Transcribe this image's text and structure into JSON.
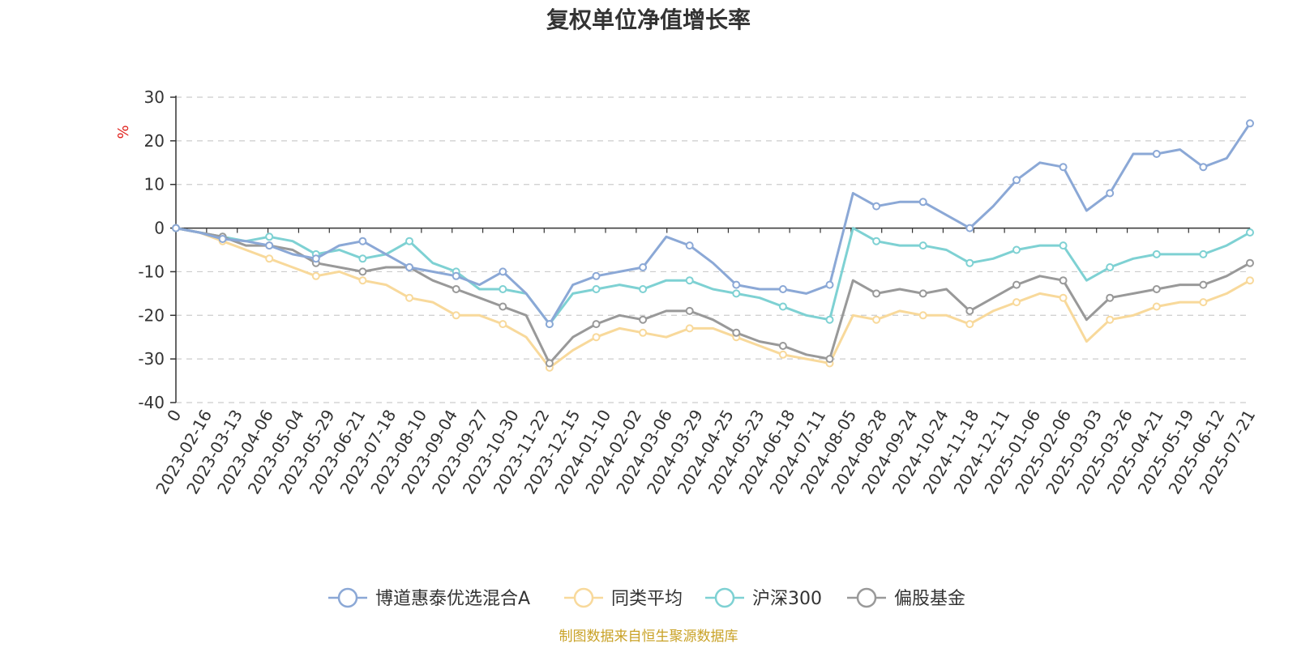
{
  "chart_data": {
    "type": "line",
    "title": "复权单位净值增长率",
    "ylabel": "%",
    "ylim": [
      -40,
      30
    ],
    "yticks": [
      30,
      20,
      10,
      0,
      -10,
      -20,
      -30,
      -40
    ],
    "grid": true,
    "legend_position": "bottom",
    "x_start_label": "0",
    "x_tick_labels": [
      "2023-02-16",
      "2023-03-13",
      "2023-04-06",
      "2023-05-04",
      "2023-05-29",
      "2023-06-21",
      "2023-07-18",
      "2023-08-10",
      "2023-09-04",
      "2023-09-27",
      "2023-10-30",
      "2023-11-22",
      "2023-12-15",
      "2024-01-10",
      "2024-02-02",
      "2024-03-06",
      "2024-03-29",
      "2024-04-25",
      "2024-05-23",
      "2024-06-18",
      "2024-07-11",
      "2024-08-05",
      "2024-08-28",
      "2024-09-24",
      "2024-10-24",
      "2024-11-18",
      "2024-12-11",
      "2025-01-06",
      "2025-02-06",
      "2025-03-03",
      "2025-03-26",
      "2025-04-21",
      "2025-05-19",
      "2025-06-12",
      "2025-07-21"
    ],
    "series": [
      {
        "name": "博道惠泰优选混合A",
        "color": "#8ba8d6",
        "values": [
          0,
          -1,
          -2.5,
          -3,
          -4,
          -6,
          -7,
          -4,
          -3,
          -6,
          -9,
          -10,
          -11,
          -13,
          -10,
          -15,
          -22,
          -13,
          -11,
          -10,
          -9,
          -2,
          -4,
          -8,
          -13,
          -14,
          -14,
          -15,
          -13,
          8,
          5,
          6,
          6,
          3,
          0,
          5,
          11,
          15,
          14,
          4,
          8,
          17,
          17,
          18,
          14,
          16,
          24
        ]
      },
      {
        "name": "同类平均",
        "color": "#f8d99b",
        "values": [
          0,
          -1,
          -3,
          -5,
          -7,
          -9,
          -11,
          -10,
          -12,
          -13,
          -16,
          -17,
          -20,
          -20,
          -22,
          -25,
          -32,
          -28,
          -25,
          -23,
          -24,
          -25,
          -23,
          -23,
          -25,
          -27,
          -29,
          -30,
          -31,
          -20,
          -21,
          -19,
          -20,
          -20,
          -22,
          -19,
          -17,
          -15,
          -16,
          -26,
          -21,
          -20,
          -18,
          -17,
          -17,
          -15,
          -12
        ]
      },
      {
        "name": "沪深300",
        "color": "#7ed1d3",
        "values": [
          0,
          -1,
          -2,
          -3,
          -2,
          -3,
          -6,
          -5,
          -7,
          -6,
          -3,
          -8,
          -10,
          -14,
          -14,
          -15,
          -22,
          -15,
          -14,
          -13,
          -14,
          -12,
          -12,
          -14,
          -15,
          -16,
          -18,
          -20,
          -21,
          0,
          -3,
          -4,
          -4,
          -5,
          -8,
          -7,
          -5,
          -4,
          -4,
          -12,
          -9,
          -7,
          -6,
          -6,
          -6,
          -4,
          -1
        ]
      },
      {
        "name": "偏股基金",
        "color": "#999999",
        "values": [
          0,
          -1,
          -2,
          -4,
          -4,
          -5,
          -8,
          -9,
          -10,
          -9,
          -9,
          -12,
          -14,
          -16,
          -18,
          -20,
          -31,
          -25,
          -22,
          -20,
          -21,
          -19,
          -19,
          -21,
          -24,
          -26,
          -27,
          -29,
          -30,
          -12,
          -15,
          -14,
          -15,
          -14,
          -19,
          -16,
          -13,
          -11,
          -12,
          -21,
          -16,
          -15,
          -14,
          -13,
          -13,
          -11,
          -8
        ]
      }
    ]
  },
  "footer": {
    "source": "制图数据来自恒生聚源数据库"
  }
}
